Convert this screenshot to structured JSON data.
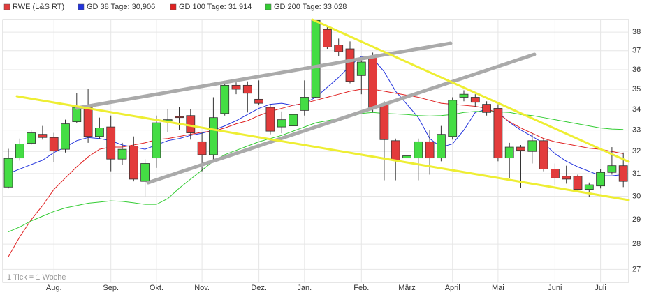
{
  "chart_data": {
    "type": "candlestick",
    "name": "RWE (L&S RT)",
    "color": "#e33b3b",
    "up_color": "#44dd44",
    "down_color": "#e33b3b",
    "annotation": "1 Tick = 1 Woche",
    "log_scale": true,
    "grid": true,
    "legend": "top",
    "ylim": [
      26.5,
      38.7
    ],
    "yticks": [
      27,
      28,
      29,
      30,
      31,
      32,
      33,
      34,
      35,
      36,
      37,
      38
    ],
    "categories": [
      null,
      null,
      null,
      null,
      "Aug.",
      null,
      null,
      null,
      null,
      "Sep.",
      null,
      null,
      null,
      "Okt.",
      null,
      null,
      null,
      "Nov.",
      null,
      null,
      null,
      null,
      "Dez.",
      null,
      null,
      null,
      "Jan.",
      null,
      null,
      null,
      null,
      "Feb.",
      null,
      null,
      null,
      "März",
      null,
      null,
      null,
      "April",
      null,
      null,
      null,
      "Mai",
      null,
      null,
      null,
      null,
      "Juni",
      null,
      null,
      null,
      "Juli",
      null,
      null
    ],
    "open": [
      30.4,
      31.7,
      32.38,
      32.8,
      32.65,
      32.1,
      33.4,
      34.1,
      32.7,
      33.15,
      31.65,
      32.25,
      30.65,
      31.7,
      33.45,
      33.65,
      33.7,
      32.45,
      31.85,
      33.8,
      35.2,
      35.2,
      34.5,
      34.1,
      33.15,
      33.2,
      33.95,
      34.6,
      38.15,
      37.3,
      37.1,
      35.7,
      36.7,
      34.25,
      32.5,
      31.7,
      31.7,
      32.45,
      31.7,
      32.7,
      34.6,
      34.6,
      34.25,
      34.05,
      31.7,
      32.2,
      32.0,
      32.5,
      31.2,
      30.88,
      30.88,
      30.3,
      30.45,
      31.05,
      31.35
    ],
    "high": [
      32.12,
      32.6,
      33.0,
      33.2,
      32.87,
      33.5,
      34.8,
      35,
      33.6,
      33.7,
      32.4,
      32.7,
      31.65,
      33.7,
      34.0,
      34.1,
      34,
      32.9,
      34.6,
      35.35,
      35.35,
      35.4,
      35.45,
      34.25,
      33.9,
      34,
      35.45,
      38.7,
      38.3,
      37.65,
      37.5,
      36.6,
      36.9,
      34.4,
      32.6,
      31.95,
      32.6,
      33,
      33.2,
      34.6,
      34.95,
      34.75,
      34.4,
      34.25,
      32.4,
      32.3,
      32.85,
      32.6,
      31.45,
      31.35,
      30.95,
      30.6,
      31.2,
      32.2,
      31.95
    ],
    "low": [
      30.34,
      31.58,
      32.3,
      32.55,
      31.5,
      31.95,
      33.35,
      32.4,
      32.6,
      31.1,
      31.4,
      30.65,
      30.0,
      31.25,
      32.9,
      33.0,
      32.55,
      31.1,
      31.55,
      33.7,
      34.75,
      33.85,
      34.2,
      32.8,
      32.85,
      32.2,
      33.7,
      34.55,
      37.1,
      36.7,
      35.3,
      34.75,
      33.85,
      30.7,
      30.7,
      29.95,
      30.7,
      30.95,
      31.55,
      32.55,
      34.4,
      34.1,
      33.7,
      31.55,
      30.8,
      30.35,
      31.45,
      31.1,
      30.5,
      30.55,
      30.2,
      29.98,
      30.34,
      30.95,
      30.4
    ],
    "close": [
      31.68,
      32.35,
      32.87,
      32.65,
      32.03,
      33.3,
      34.1,
      32.7,
      33.1,
      31.65,
      32.1,
      30.75,
      31.45,
      33.35,
      33.5,
      33.6,
      32.87,
      31.85,
      33.6,
      35.2,
      35,
      34.8,
      34.3,
      32.95,
      33.5,
      33.75,
      34.6,
      38.65,
      37.2,
      36.95,
      35.4,
      36.4,
      34.1,
      32.55,
      31.6,
      31.8,
      32.45,
      31.7,
      32.8,
      34.45,
      34.75,
      34.35,
      33.85,
      31.7,
      32.2,
      32.05,
      32.5,
      31.2,
      30.8,
      30.75,
      30.3,
      30.5,
      31.05,
      31.35,
      30.65
    ],
    "series": [
      {
        "name": "GD 38 Tage: 30,906",
        "color": "#2233dd",
        "values": [
          31.0,
          31.2,
          31.4,
          31.6,
          31.95,
          32.2,
          32.5,
          32.65,
          32.6,
          32.5,
          32.3,
          32.2,
          32.1,
          32.3,
          32.5,
          32.6,
          32.75,
          32.85,
          33.0,
          33.2,
          33.45,
          33.75,
          34.05,
          34.25,
          34.3,
          34.2,
          34.3,
          34.6,
          35.1,
          35.6,
          36.2,
          36.7,
          36.6,
          35.9,
          34.9,
          34.25,
          33.6,
          32.6,
          32.2,
          32.35,
          33.0,
          33.85,
          34.0,
          33.85,
          33.37,
          33.0,
          32.7,
          32.38,
          31.9,
          31.55,
          31.3,
          31.1,
          30.9,
          30.9,
          30.95
        ]
      },
      {
        "name": "GD 100 Tage: 31,914",
        "color": "#e02020",
        "values": [
          27.5,
          28.3,
          29.0,
          29.6,
          30.3,
          30.8,
          31.3,
          31.75,
          32.1,
          32.2,
          32.2,
          32.3,
          32.4,
          32.55,
          32.6,
          32.7,
          32.8,
          32.9,
          32.95,
          33.1,
          33.3,
          33.45,
          33.7,
          33.9,
          34.05,
          34.2,
          34.3,
          34.45,
          34.6,
          34.75,
          34.9,
          35.0,
          35.0,
          34.9,
          34.8,
          34.7,
          34.6,
          34.45,
          34.3,
          34.25,
          34.2,
          34.15,
          34.05,
          33.8,
          33.4,
          33.1,
          32.85,
          32.6,
          32.45,
          32.35,
          32.25,
          32.15,
          32.1,
          32.0,
          31.9
        ]
      },
      {
        "name": "GD 200 Tage: 33,028",
        "color": "#33cc33",
        "values": [
          28.5,
          28.7,
          28.95,
          29.15,
          29.35,
          29.5,
          29.6,
          29.7,
          29.75,
          29.8,
          29.78,
          29.72,
          29.65,
          29.65,
          29.9,
          30.35,
          30.75,
          31.15,
          31.55,
          31.85,
          32.05,
          32.25,
          32.45,
          32.6,
          32.75,
          32.95,
          33.15,
          33.35,
          33.45,
          33.55,
          33.65,
          33.8,
          33.85,
          33.8,
          33.78,
          33.75,
          33.7,
          33.68,
          33.7,
          33.75,
          33.85,
          33.9,
          33.9,
          33.88,
          33.85,
          33.75,
          33.7,
          33.6,
          33.5,
          33.4,
          33.3,
          33.2,
          33.1,
          33.05,
          33.03
        ]
      }
    ]
  }
}
